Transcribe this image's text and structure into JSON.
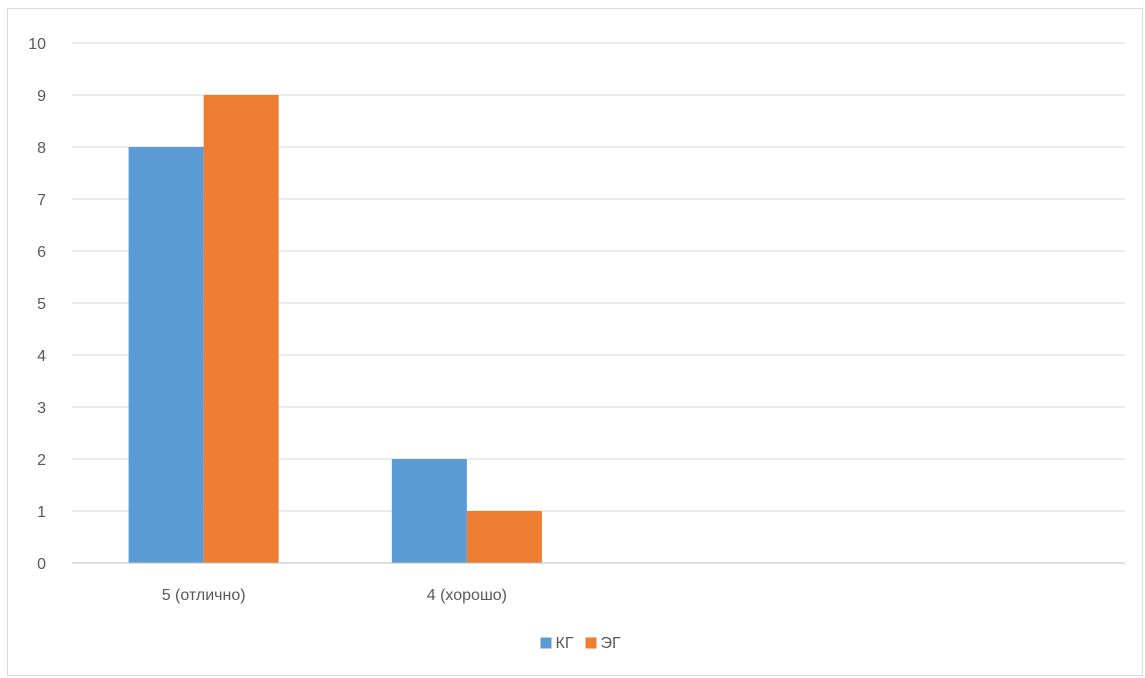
{
  "chart_data": {
    "type": "bar",
    "title": "",
    "xlabel": "",
    "ylabel": "",
    "categories": [
      "5 (отлично)",
      "4 (хорошо)",
      "",
      ""
    ],
    "series": [
      {
        "name": "КГ",
        "values": [
          8,
          2,
          0,
          0
        ],
        "color": "#5b9bd5"
      },
      {
        "name": "ЭГ",
        "values": [
          9,
          1,
          0,
          0
        ],
        "color": "#ed7d31"
      }
    ],
    "ylim": [
      0,
      10
    ],
    "yticks": [
      0,
      1,
      2,
      3,
      4,
      5,
      6,
      7,
      8,
      9,
      10
    ],
    "grid": true,
    "legend": "bottom",
    "gridColor": "#d9d9d9",
    "axisColor": "#bfbfbf"
  }
}
